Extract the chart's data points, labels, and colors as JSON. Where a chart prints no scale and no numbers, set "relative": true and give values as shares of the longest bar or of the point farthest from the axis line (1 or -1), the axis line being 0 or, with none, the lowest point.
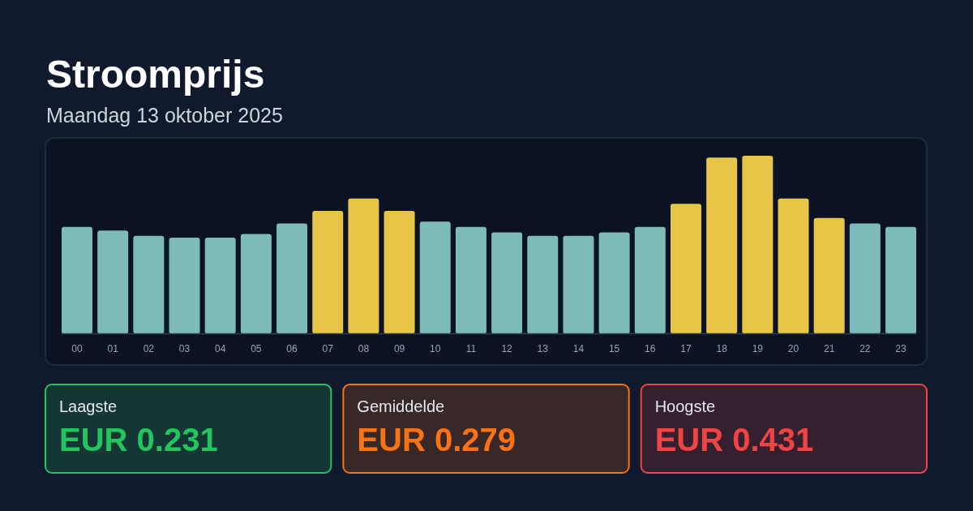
{
  "chart_data": [
    {
      "type": "bar",
      "title": "Stroomprijs",
      "subtitle": "Maandag 13 oktober 2025",
      "categories": [
        "00",
        "01",
        "02",
        "03",
        "04",
        "05",
        "06",
        "07",
        "08",
        "09",
        "10",
        "11",
        "12",
        "13",
        "14",
        "15",
        "16",
        "17",
        "18",
        "19",
        "20",
        "21",
        "22",
        "23"
      ],
      "values": [
        0.6,
        0.58,
        0.55,
        0.54,
        0.54,
        0.56,
        0.62,
        0.69,
        0.76,
        0.69,
        0.63,
        0.6,
        0.57,
        0.55,
        0.55,
        0.57,
        0.6,
        0.73,
        0.99,
        1,
        0.76,
        0.65,
        0.62,
        0.6
      ],
      "colors": [
        "#7dbbba",
        "#7dbbba",
        "#7dbbba",
        "#7dbbba",
        "#7dbbba",
        "#7dbbba",
        "#7dbbba",
        "#e8c547",
        "#e8c547",
        "#e8c547",
        "#7dbbba",
        "#7dbbba",
        "#7dbbba",
        "#7dbbba",
        "#7dbbba",
        "#7dbbba",
        "#7dbbba",
        "#e8c547",
        "#e8c547",
        "#e8c547",
        "#e8c547",
        "#e8c547",
        "#7dbbba",
        "#7dbbba"
      ],
      "relative": true
    },
    {
      "type": "other",
      "title": "Laagste",
      "annotations": [
        "EUR 0.231"
      ],
      "color": "#22c55e"
    },
    {
      "type": "other",
      "title": "Gemiddelde",
      "annotations": [
        "EUR 0.279"
      ],
      "color": "#f97316"
    },
    {
      "type": "other",
      "title": "Hoogste",
      "annotations": [
        "EUR 0.431"
      ],
      "color": "#ef4444"
    }
  ]
}
